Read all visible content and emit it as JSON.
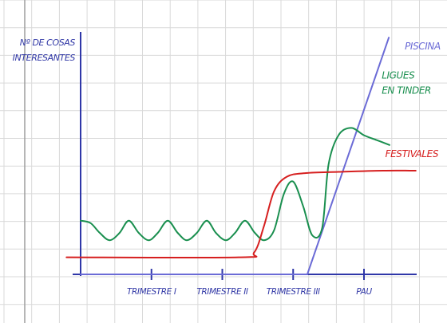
{
  "chart_data": {
    "type": "line",
    "title": "",
    "ylabel_lines": [
      "Nº DE COSAS",
      "INTERESANTES"
    ],
    "xlabel": "",
    "categories": [
      "TRIMESTRE I",
      "TRIMESTRE II",
      "TRIMESTRE III",
      "PAU"
    ],
    "xlim": [
      0,
      4.8
    ],
    "ylim": [
      0,
      10
    ],
    "grid": true,
    "legend": "none",
    "series": [
      {
        "name": "PISCINA",
        "label_lines": [
          "PISCINA"
        ],
        "color": "#6b6bd6",
        "points": [
          [
            0,
            0
          ],
          [
            3.2,
            0
          ],
          [
            4.35,
            9.7
          ]
        ]
      },
      {
        "name": "LIGUES EN TINDER",
        "label_lines": [
          "LIGUES",
          "EN TINDER"
        ],
        "color": "#1a8f4f",
        "points": [
          [
            0,
            2.2
          ],
          [
            0.14,
            2.1
          ],
          [
            0.27,
            1.7
          ],
          [
            0.41,
            1.4
          ],
          [
            0.55,
            1.7
          ],
          [
            0.68,
            2.2
          ],
          [
            0.82,
            1.7
          ],
          [
            0.96,
            1.4
          ],
          [
            1.09,
            1.7
          ],
          [
            1.23,
            2.2
          ],
          [
            1.37,
            1.7
          ],
          [
            1.5,
            1.4
          ],
          [
            1.64,
            1.7
          ],
          [
            1.78,
            2.2
          ],
          [
            1.91,
            1.7
          ],
          [
            2.05,
            1.4
          ],
          [
            2.18,
            1.7
          ],
          [
            2.32,
            2.2
          ],
          [
            2.46,
            1.7
          ],
          [
            2.59,
            1.4
          ],
          [
            2.73,
            1.8
          ],
          [
            2.87,
            3.3
          ],
          [
            3.0,
            3.8
          ],
          [
            3.14,
            2.8
          ],
          [
            3.27,
            1.6
          ],
          [
            3.41,
            1.9
          ],
          [
            3.5,
            4.5
          ],
          [
            3.64,
            5.7
          ],
          [
            3.82,
            6.0
          ],
          [
            4.0,
            5.7
          ],
          [
            4.18,
            5.5
          ],
          [
            4.36,
            5.3
          ]
        ],
        "label_anchor": [
          4.25,
          7.4
        ]
      },
      {
        "name": "FESTIVALES",
        "label_lines": [
          "FESTIVALES"
        ],
        "color": "#d61f1f",
        "points": [
          [
            -0.2,
            0.7
          ],
          [
            2.23,
            0.7
          ],
          [
            2.45,
            0.9
          ],
          [
            2.59,
            2.0
          ],
          [
            2.73,
            3.4
          ],
          [
            2.91,
            4.0
          ],
          [
            3.18,
            4.15
          ],
          [
            3.64,
            4.2
          ],
          [
            4.27,
            4.25
          ],
          [
            4.73,
            4.25
          ]
        ],
        "label_anchor": [
          4.3,
          4.8
        ]
      }
    ]
  },
  "colors": {
    "grid": "#d9d9d9",
    "axis": "#2f37a8",
    "label": "#3138a6",
    "margin_line": "#9e9e9e"
  }
}
